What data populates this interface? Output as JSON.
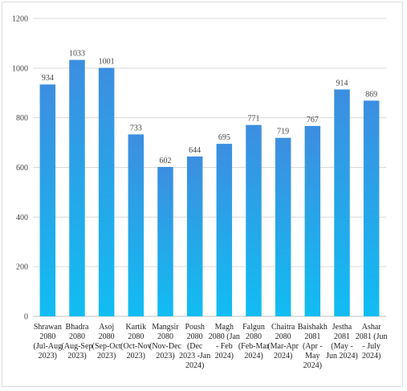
{
  "chart_data": {
    "type": "bar",
    "title": "",
    "xlabel": "",
    "ylabel": "",
    "ylim": [
      0,
      1200
    ],
    "yticks": [
      0,
      200,
      400,
      600,
      800,
      1000,
      1200
    ],
    "grid": true,
    "legend": "none",
    "bar_gradient": [
      "#3d8ee0",
      "#11bdf2"
    ],
    "categories": [
      [
        "Shrawan",
        "2080",
        "(Jul-Aug",
        "2023)"
      ],
      [
        "Bhadra",
        "2080",
        "(Aug-Sep",
        "2023)"
      ],
      [
        "Asoj",
        "2080",
        "(Sep-Oct",
        "2023)"
      ],
      [
        "Kartik",
        "2080",
        "(Oct-Nov",
        "2023)"
      ],
      [
        "Mangsir",
        "2080",
        "(Nov-Dec",
        "2023)"
      ],
      [
        "Poush",
        "2080",
        "(Dec",
        "2023 -Jan",
        "2024)"
      ],
      [
        "Magh",
        "2080 (Jan",
        "- Feb",
        "2024)"
      ],
      [
        "Falgun",
        "2080",
        "(Feb-Mar",
        "2024)"
      ],
      [
        "Chaitra",
        "2080",
        "(Mar-Apr",
        "2024)"
      ],
      [
        "Baishakh",
        "2081",
        "(Apr -",
        "May",
        "2024)"
      ],
      [
        "Jestha",
        "2081",
        "(May -",
        "Jun 2024)"
      ],
      [
        "Ashar",
        "2081 (Jun",
        "- July",
        "2024)"
      ]
    ],
    "values": [
      934,
      1033,
      1001,
      733,
      602,
      644,
      695,
      771,
      719,
      767,
      914,
      869
    ],
    "data_labels": [
      "934",
      "1033",
      "1001",
      "733",
      "602",
      "644",
      "695",
      "771",
      "719",
      "767",
      "914",
      "869"
    ]
  }
}
